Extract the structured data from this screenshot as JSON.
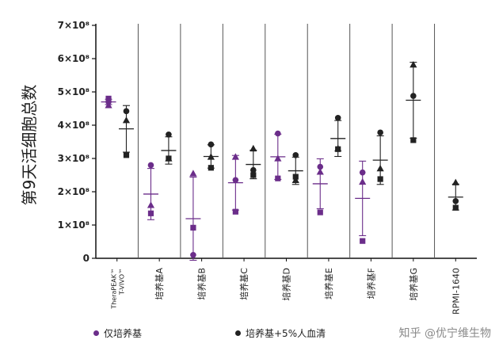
{
  "chart_data": {
    "type": "scatter",
    "ylabel": "第9天活细胞总数",
    "yticks": [
      {
        "value": 0,
        "label": "0"
      },
      {
        "value": 1,
        "label": "1×10⁸"
      },
      {
        "value": 2,
        "label": "2×10⁸"
      },
      {
        "value": 3,
        "label": "3×10⁸"
      },
      {
        "value": 4,
        "label": "4×10⁸"
      },
      {
        "value": 5,
        "label": "5×10⁸"
      },
      {
        "value": 6,
        "label": "6×10⁸"
      },
      {
        "value": 7,
        "label": "7×10⁸"
      }
    ],
    "ylim": [
      0,
      7
    ],
    "categories": [
      "TheraPEAK™ T-VIVO™",
      "培养基A",
      "培养基B",
      "培养基C",
      "培养基D",
      "培养基E",
      "培养基F",
      "培养基G",
      "RPMI-1640"
    ],
    "category_label_lines": [
      [
        "TheraPEAK™",
        "T-VIVO™"
      ],
      [
        "培养基A"
      ],
      [
        "培养基B"
      ],
      [
        "培养基C"
      ],
      [
        "培养基D"
      ],
      [
        "培养基E"
      ],
      [
        "培养基F"
      ],
      [
        "培养基G"
      ],
      [
        "RPMI-1640"
      ]
    ],
    "series": [
      {
        "name": "仅培养基",
        "color": "#6b2d8a",
        "groups": [
          {
            "points": [
              {
                "shape": "circle",
                "y": 4.7
              },
              {
                "shape": "triangle",
                "y": 4.6
              },
              {
                "shape": "square",
                "y": 4.8
              }
            ],
            "mean": 4.7,
            "sd": 0.08
          },
          {
            "points": [
              {
                "shape": "circle",
                "y": 2.8
              },
              {
                "shape": "triangle",
                "y": 1.6
              },
              {
                "shape": "square",
                "y": 1.35
              }
            ],
            "mean": 1.93,
            "sd": 0.77
          },
          {
            "points": [
              {
                "shape": "circle",
                "y": 0.1
              },
              {
                "shape": "triangle",
                "y": 2.55
              },
              {
                "shape": "square",
                "y": 0.92
              }
            ],
            "mean": 1.19,
            "sd": 1.25
          },
          {
            "points": [
              {
                "shape": "circle",
                "y": 2.35
              },
              {
                "shape": "triangle",
                "y": 3.05
              },
              {
                "shape": "square",
                "y": 1.4
              }
            ],
            "mean": 2.27,
            "sd": 0.82
          },
          {
            "points": [
              {
                "shape": "circle",
                "y": 3.75
              },
              {
                "shape": "triangle",
                "y": 3.0
              },
              {
                "shape": "square",
                "y": 2.4
              }
            ],
            "mean": 3.05,
            "sd": 0.68
          },
          {
            "points": [
              {
                "shape": "circle",
                "y": 2.75
              },
              {
                "shape": "triangle",
                "y": 2.6
              },
              {
                "shape": "square",
                "y": 1.38
              }
            ],
            "mean": 2.24,
            "sd": 0.75
          },
          {
            "points": [
              {
                "shape": "circle",
                "y": 2.58
              },
              {
                "shape": "triangle",
                "y": 2.3
              },
              {
                "shape": "square",
                "y": 0.52
              }
            ],
            "mean": 1.8,
            "sd": 1.12
          }
        ]
      },
      {
        "name": "培养基+5%人血清",
        "color": "#222222",
        "groups": [
          {
            "points": [
              {
                "shape": "circle",
                "y": 4.42
              },
              {
                "shape": "triangle",
                "y": 4.15
              },
              {
                "shape": "square",
                "y": 3.1
              }
            ],
            "mean": 3.89,
            "sd": 0.7
          },
          {
            "points": [
              {
                "shape": "circle",
                "y": 3.72
              },
              {
                "shape": "triangle",
                "y": 3.0
              },
              {
                "shape": "square",
                "y": 3.0
              }
            ],
            "mean": 3.24,
            "sd": 0.41
          },
          {
            "points": [
              {
                "shape": "circle",
                "y": 3.42
              },
              {
                "shape": "triangle",
                "y": 3.05
              },
              {
                "shape": "square",
                "y": 2.72
              }
            ],
            "mean": 3.06,
            "sd": 0.35
          },
          {
            "points": [
              {
                "shape": "circle",
                "y": 2.65
              },
              {
                "shape": "triangle",
                "y": 3.3
              },
              {
                "shape": "square",
                "y": 2.5
              }
            ],
            "mean": 2.82,
            "sd": 0.43
          },
          {
            "points": [
              {
                "shape": "circle",
                "y": 3.1
              },
              {
                "shape": "triangle",
                "y": 2.35
              },
              {
                "shape": "square",
                "y": 2.45
              }
            ],
            "mean": 2.63,
            "sd": 0.41
          },
          {
            "points": [
              {
                "shape": "circle",
                "y": 4.22
              },
              {
                "shape": "triangle",
                "y": 3.3
              },
              {
                "shape": "square",
                "y": 3.28
              }
            ],
            "mean": 3.6,
            "sd": 0.54
          },
          {
            "points": [
              {
                "shape": "circle",
                "y": 3.78
              },
              {
                "shape": "triangle",
                "y": 2.7
              },
              {
                "shape": "square",
                "y": 2.38
              }
            ],
            "mean": 2.95,
            "sd": 0.73
          },
          {
            "points": [
              {
                "shape": "circle",
                "y": 4.88
              },
              {
                "shape": "triangle",
                "y": 5.82
              },
              {
                "shape": "square",
                "y": 3.55
              }
            ],
            "mean": 4.75,
            "sd": 1.14
          },
          {
            "points": [
              {
                "shape": "circle",
                "y": 1.72
              },
              {
                "shape": "triangle",
                "y": 2.28
              },
              {
                "shape": "square",
                "y": 1.52
              }
            ],
            "mean": 1.84,
            "sd": 0.39
          }
        ]
      }
    ],
    "legend_position": "bottom",
    "grid": false
  },
  "legend": {
    "items": [
      {
        "label": "仅培养基",
        "color": "#6b2d8a"
      },
      {
        "label": "培养基+5%人血清",
        "color": "#222222"
      }
    ]
  },
  "watermark": "知乎 @优宁维生物"
}
